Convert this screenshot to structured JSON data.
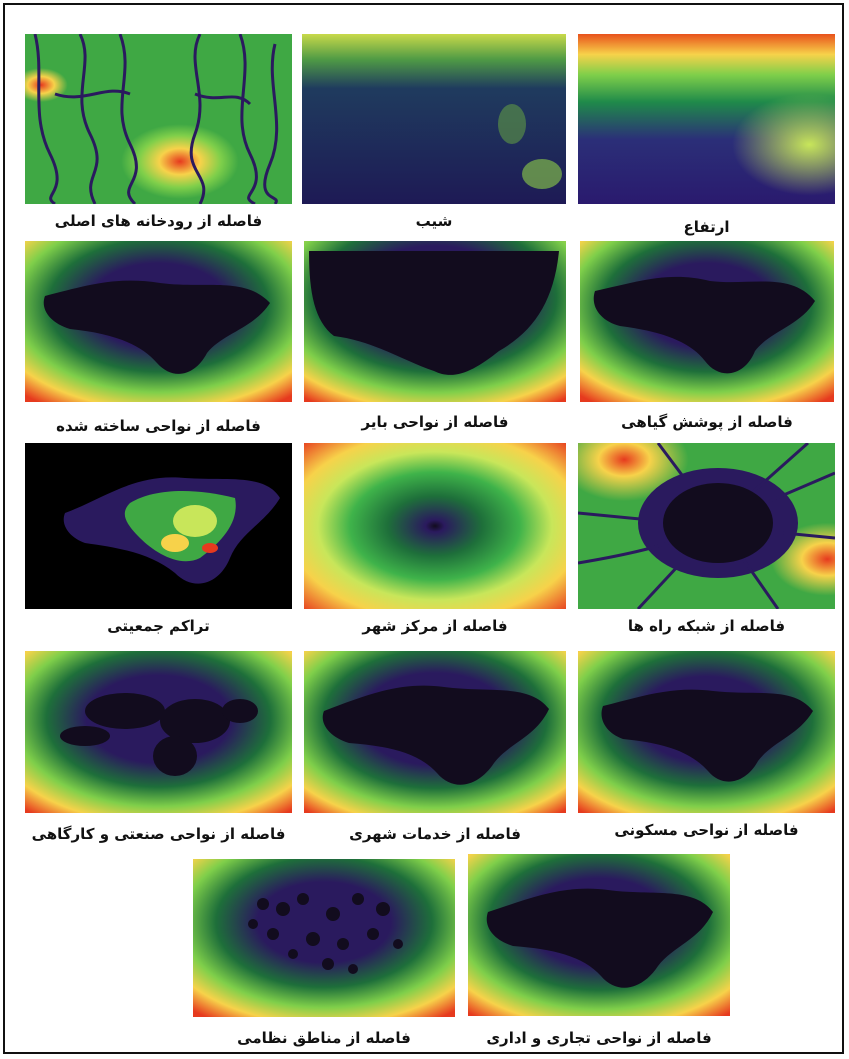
{
  "figure": {
    "panels": [
      {
        "id": "elevation",
        "caption": "ارتفاع"
      },
      {
        "id": "slope",
        "caption": "شیب"
      },
      {
        "id": "rivers",
        "caption": "فاصله از رودخانه های اصلی"
      },
      {
        "id": "vegetation",
        "caption": "فاصله از پوشش گیاهی"
      },
      {
        "id": "barren",
        "caption": "فاصله از نواحی بایر"
      },
      {
        "id": "built",
        "caption": "فاصله از نواحی ساخته شده"
      },
      {
        "id": "roads",
        "caption": "فاصله از شبکه راه ها"
      },
      {
        "id": "center",
        "caption": "فاصله از مرکز شهر"
      },
      {
        "id": "population",
        "caption": "تراکم جمعیتی"
      },
      {
        "id": "residential",
        "caption": "فاصله از نواحی مسکونی"
      },
      {
        "id": "services",
        "caption": "فاصله از خدمات شهری"
      },
      {
        "id": "industrial",
        "caption": "فاصله از نواحی صنعتی و کارگاهی"
      },
      {
        "id": "commercial",
        "caption": "فاصله از نواحی تجاری و اداری"
      },
      {
        "id": "military",
        "caption": "فاصله از مناطق نظامی"
      }
    ]
  },
  "colors": {
    "ramp": [
      "#2a1a5e",
      "#1e6f3a",
      "#3fb34a",
      "#c8e65a",
      "#f7d24a",
      "#e63a1e"
    ],
    "city": "#120c1e",
    "background": "#ffffff",
    "border": "#111111"
  }
}
